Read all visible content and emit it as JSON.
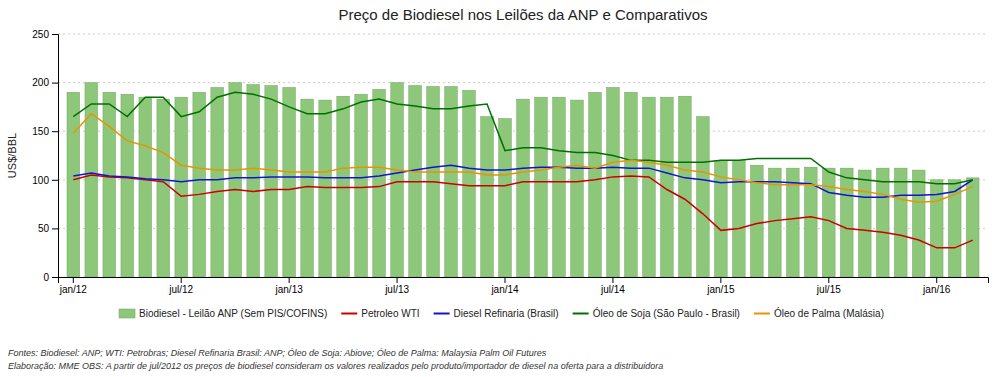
{
  "chart_data": {
    "type": "bar",
    "title": "Preço de Biodiesel nos Leilões da ANP e Comparativos",
    "ylabel": "US$/BBL",
    "annotations": [
      "Fontes: Biodiesel: ANP; WTI: Petrobras; Diesel Refinaria Brasil: ANP; Óleo de Soja: Abiove; Óleo de Palma: Malaysia Palm Oil Futures",
      "Elaboração: MME      OBS: A partir de jul/2012 os preços de biodiesel consideram os valores realizados pelo produto/importador  de diesel na oferta para a distribuidora"
    ],
    "categories": [
      "jan/12",
      null,
      null,
      null,
      null,
      null,
      "jul/12",
      null,
      null,
      null,
      null,
      null,
      "jan/13",
      null,
      null,
      null,
      null,
      null,
      "jul/13",
      null,
      null,
      null,
      null,
      null,
      "jan/14",
      null,
      null,
      null,
      null,
      null,
      "jul/14",
      null,
      null,
      null,
      null,
      null,
      "jan/15",
      null,
      null,
      null,
      null,
      null,
      "jul/15",
      null,
      null,
      null,
      null,
      null,
      "jan/16",
      null,
      null
    ],
    "series": [
      {
        "name": "Biodiesel - Leilão ANP (Sem PIS/COFINS)",
        "type": "bar",
        "color": "#8DC87A",
        "values": [
          190,
          200,
          190,
          188,
          185,
          183,
          185,
          190,
          195,
          200,
          198,
          197,
          195,
          183,
          182,
          186,
          188,
          193,
          200,
          197,
          196,
          196,
          192,
          165,
          163,
          183,
          185,
          185,
          182,
          190,
          195,
          190,
          185,
          185,
          186,
          165,
          120,
          120,
          115,
          112,
          112,
          113,
          112,
          112,
          110,
          112,
          112,
          110,
          100,
          100,
          102
        ]
      },
      {
        "name": "Petroleo WTI",
        "type": "line",
        "color": "#cc0000",
        "values": [
          100,
          105,
          103,
          102,
          100,
          98,
          83,
          85,
          88,
          90,
          88,
          90,
          90,
          93,
          92,
          92,
          92,
          93,
          98,
          98,
          98,
          96,
          94,
          94,
          94,
          98,
          98,
          98,
          98,
          100,
          103,
          104,
          103,
          90,
          80,
          65,
          48,
          50,
          55,
          58,
          60,
          62,
          58,
          50,
          48,
          46,
          43,
          38,
          30,
          30,
          38
        ]
      },
      {
        "name": "Diesel Refinaria (Brasil)",
        "type": "line",
        "color": "#1414cc",
        "values": [
          104,
          107,
          104,
          103,
          101,
          100,
          98,
          100,
          100,
          102,
          102,
          103,
          103,
          103,
          102,
          102,
          102,
          104,
          107,
          110,
          113,
          115,
          112,
          110,
          110,
          112,
          113,
          113,
          112,
          112,
          113,
          112,
          112,
          107,
          102,
          100,
          97,
          98,
          98,
          98,
          97,
          96,
          87,
          84,
          82,
          82,
          84,
          84,
          85,
          88,
          100
        ]
      },
      {
        "name": "Óleo de Soja (São Paulo - Brasil)",
        "type": "line",
        "color": "#007000",
        "values": [
          165,
          178,
          178,
          165,
          185,
          185,
          165,
          170,
          185,
          190,
          188,
          183,
          175,
          168,
          168,
          173,
          180,
          183,
          178,
          176,
          173,
          173,
          176,
          178,
          130,
          133,
          133,
          130,
          128,
          128,
          125,
          120,
          120,
          118,
          118,
          118,
          120,
          120,
          122,
          122,
          122,
          122,
          108,
          102,
          100,
          98,
          98,
          98,
          96,
          96,
          100
        ]
      },
      {
        "name": "Óleo de Palma (Malásia)",
        "type": "line",
        "color": "#e89400",
        "values": [
          148,
          168,
          155,
          140,
          135,
          128,
          115,
          112,
          110,
          110,
          112,
          110,
          108,
          108,
          108,
          112,
          113,
          113,
          110,
          108,
          108,
          108,
          108,
          105,
          105,
          108,
          110,
          113,
          115,
          112,
          118,
          120,
          118,
          115,
          110,
          108,
          103,
          100,
          97,
          95,
          95,
          95,
          93,
          90,
          88,
          85,
          80,
          77,
          78,
          85,
          93
        ]
      }
    ],
    "ylim": [
      0,
      250
    ],
    "yticks": [
      0,
      50,
      100,
      150,
      200,
      250
    ],
    "grid": true,
    "legend": "bottom"
  }
}
